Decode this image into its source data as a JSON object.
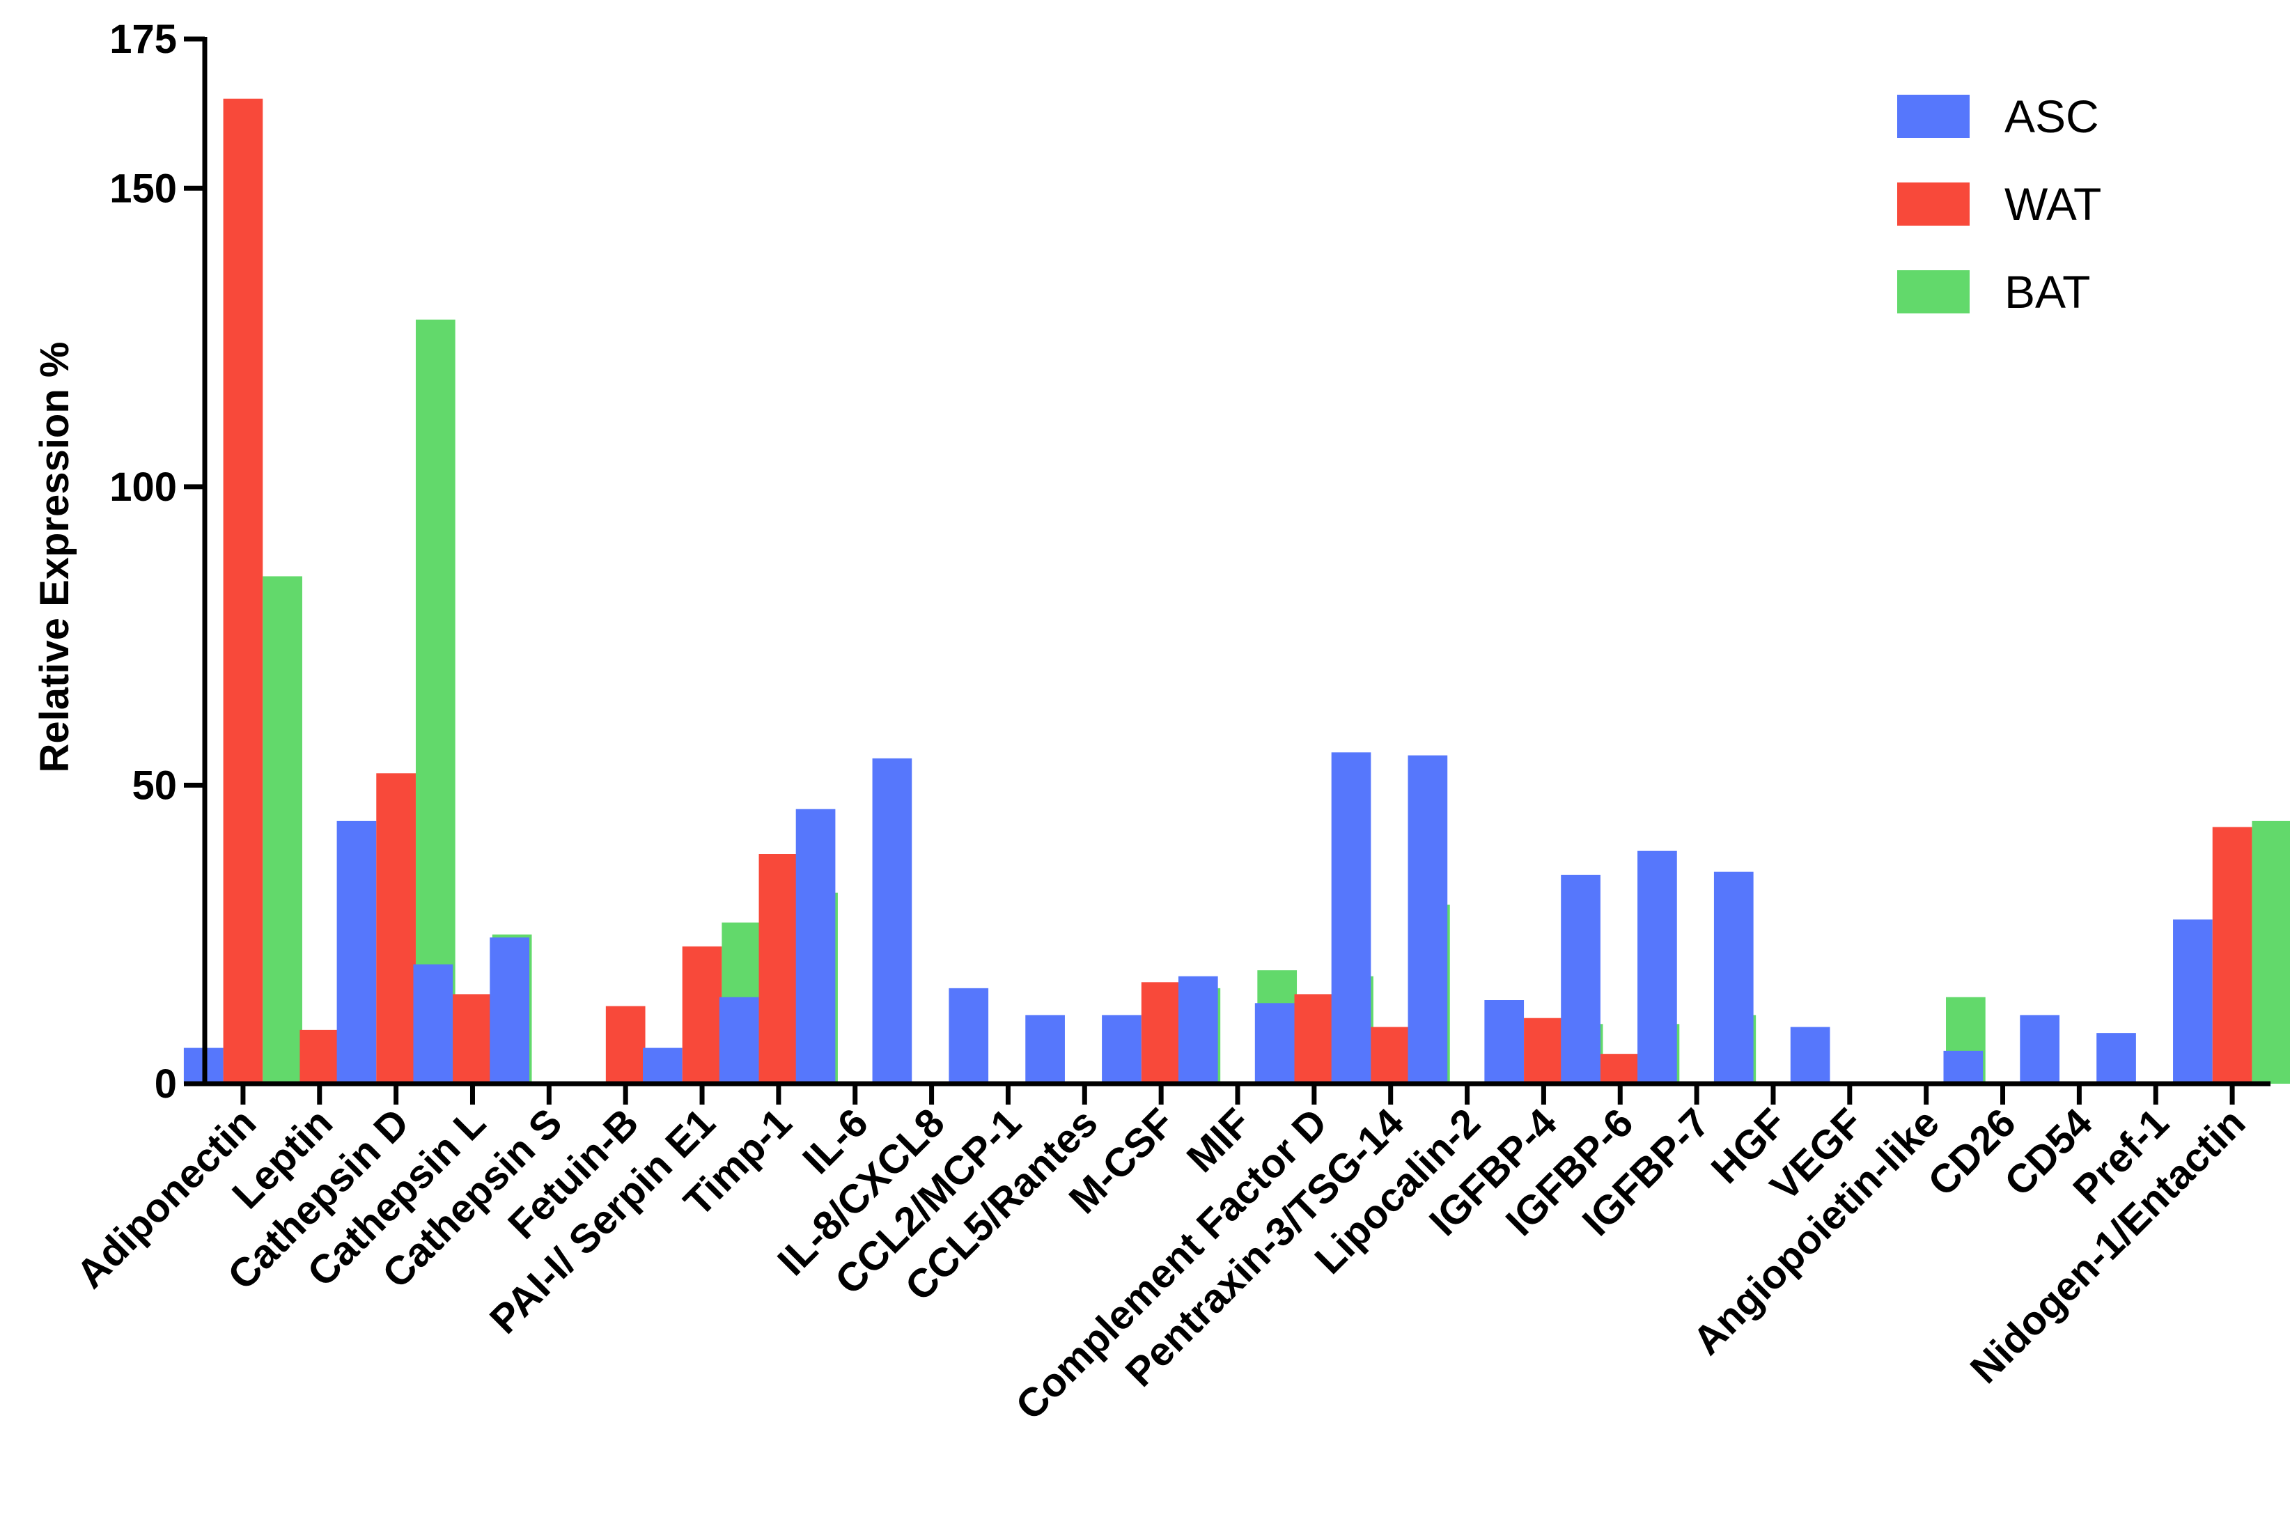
{
  "chart_data": {
    "type": "bar",
    "title": "",
    "xlabel": "",
    "ylabel": "Relative Expression %",
    "ylim": [
      0,
      175
    ],
    "yticks": [
      0,
      50,
      100,
      150,
      175
    ],
    "grid": false,
    "legend_position": "top-right",
    "categories": [
      "Adiponectin",
      "Leptin",
      "Cathepsin D",
      "Cathepsin L",
      "Cathepsin S",
      "Fetuin-B",
      "PAI-I/ Serpin E1",
      "Timp-1",
      "IL-6",
      "IL-8/CXCL8",
      "CCL2/MCP-1",
      "CCL5/Rantes",
      "M-CSF",
      "MIF",
      "Complement Factor D",
      "Pentraxin-3/TSG-14",
      "Lipocalin-2",
      "IGFBP-4",
      "IGFBP-6",
      "IGFBP-7",
      "HGF",
      "VEGF",
      "Angiopoietin-like",
      "CD26",
      "CD54",
      "Pref-1",
      "Nidogen-1/Entactin"
    ],
    "series": [
      {
        "name": "ASC",
        "color": "#5677fc",
        "values": [
          6,
          0,
          44,
          20,
          24.5,
          0,
          6,
          14.5,
          46,
          54.5,
          16,
          11.5,
          11.5,
          18,
          13.5,
          55.5,
          55,
          14,
          35,
          39,
          35.5,
          9.5,
          0,
          5.5,
          11.5,
          8.5,
          27.5
        ]
      },
      {
        "name": "WAT",
        "color": "#f8493a",
        "values": [
          165,
          9,
          52,
          15,
          0,
          13,
          23,
          38.5,
          0,
          0,
          0,
          0,
          17,
          0,
          15,
          9.5,
          0,
          11,
          5,
          0,
          0,
          0,
          0,
          0,
          0,
          0,
          43
        ]
      },
      {
        "name": "BAT",
        "color": "#62d96b",
        "values": [
          85,
          0,
          128,
          25,
          0,
          0,
          27,
          32,
          0,
          0,
          0,
          0,
          16,
          19,
          18,
          30,
          0,
          10,
          10,
          11.5,
          0,
          0,
          14.5,
          0,
          0,
          0,
          44
        ]
      }
    ]
  }
}
